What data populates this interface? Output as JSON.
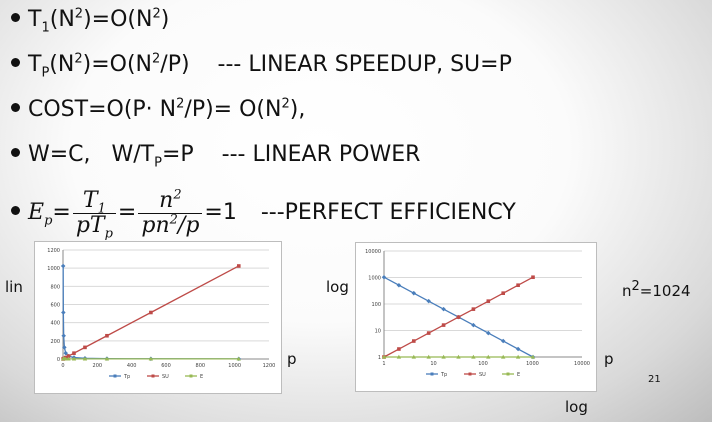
{
  "bullets": {
    "b1": {
      "a": "T",
      "a_sub": "1",
      "b": "(N",
      "b_sup": "2",
      "c": ")=O(N",
      "c_sup": "2",
      "d": ")"
    },
    "b2": {
      "a": "T",
      "a_sub": "P",
      "b": "(N",
      "b_sup": "2",
      "c": ")=O(N",
      "c_sup": "2",
      "d": "/P)    --- LINEAR SPEEDUP, SU=P"
    },
    "b3": {
      "a": "COST=O(P· N",
      "a_sup": "2",
      "b": "/P)= O(N",
      "b_sup": "2",
      "c": "),"
    },
    "b4": {
      "a": "W=C,   W/T",
      "a_sub": "P",
      "b": "=P    --- LINEAR POWER"
    },
    "b5": {
      "lhs": "E",
      "lhs_sub": "p",
      "eq": "=",
      "f1_num": "T",
      "f1_num_sub": "1",
      "f1_den": "pT",
      "f1_den_sub": "p",
      "f2_num": "n",
      "f2_num_sup": "2",
      "f2_den": "pn",
      "f2_den_sup": "2",
      "f2_den_tail": "/p",
      "result": "=1",
      "note": "---PERFECT EFFICIENCY"
    }
  },
  "labels": {
    "lin": "lin",
    "log_left": "log",
    "p_left": "p",
    "p_right": "p",
    "log_bottom": "log",
    "n2": "n",
    "n2_sup": "2",
    "n2_value": "=1024",
    "page_number": "21"
  },
  "colors": {
    "tp": "#4a7ebb",
    "su": "#be4b48",
    "e": "#98b954",
    "grid": "#d9d9d9",
    "axis_text": "#404040"
  },
  "chart_data": [
    {
      "type": "line",
      "scale": "linear",
      "x": [
        1,
        2,
        4,
        8,
        16,
        32,
        64,
        128,
        256,
        512,
        1024
      ],
      "xlim": [
        0,
        1200
      ],
      "ylim": [
        0,
        1200
      ],
      "x_ticks": [
        "0",
        "200",
        "400",
        "600",
        "800",
        "1000",
        "1200"
      ],
      "y_ticks": [
        "0",
        "200",
        "400",
        "600",
        "800",
        "1000",
        "1200"
      ],
      "legend_position": "bottom",
      "grid": true,
      "series": [
        {
          "name": "Tp",
          "values": [
            1024,
            512,
            256,
            128,
            64,
            32,
            16,
            8,
            4,
            2,
            1
          ]
        },
        {
          "name": "SU",
          "values": [
            1,
            2,
            4,
            8,
            16,
            32,
            64,
            128,
            256,
            512,
            1024
          ]
        },
        {
          "name": "E",
          "values": [
            1,
            1,
            1,
            1,
            1,
            1,
            1,
            1,
            1,
            1,
            1
          ]
        }
      ]
    },
    {
      "type": "line",
      "scale": "log-log",
      "x": [
        1,
        2,
        4,
        8,
        16,
        32,
        64,
        128,
        256,
        512,
        1024
      ],
      "xlim": [
        1,
        10000
      ],
      "ylim": [
        1,
        10000
      ],
      "x_ticks": [
        "1",
        "10",
        "100",
        "1000",
        "10000"
      ],
      "y_ticks": [
        "1",
        "10",
        "100",
        "1000",
        "10000"
      ],
      "legend_position": "bottom",
      "grid": true,
      "series": [
        {
          "name": "Tp",
          "values": [
            1024,
            512,
            256,
            128,
            64,
            32,
            16,
            8,
            4,
            2,
            1
          ]
        },
        {
          "name": "SU",
          "values": [
            1,
            2,
            4,
            8,
            16,
            32,
            64,
            128,
            256,
            512,
            1024
          ]
        },
        {
          "name": "E",
          "values": [
            1,
            1,
            1,
            1,
            1,
            1,
            1,
            1,
            1,
            1,
            1
          ]
        }
      ]
    }
  ]
}
